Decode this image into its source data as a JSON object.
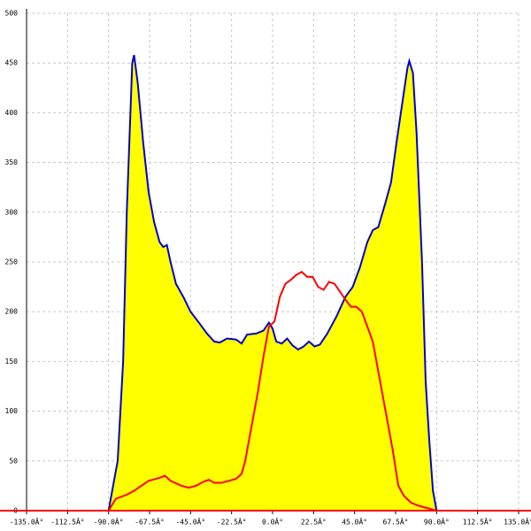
{
  "chart_data": {
    "type": "area-line",
    "xlim": [
      -135,
      135
    ],
    "ylim": [
      0,
      500
    ],
    "xticks": [
      {
        "value": -135,
        "label": "-135.0Â°"
      },
      {
        "value": -112.5,
        "label": "-112.5Â°"
      },
      {
        "value": -90,
        "label": "-90.0Â°"
      },
      {
        "value": -67.5,
        "label": "-67.5Â°"
      },
      {
        "value": -45,
        "label": "-45.0Â°"
      },
      {
        "value": -22.5,
        "label": "-22.5Â°"
      },
      {
        "value": 0,
        "label": "0.0Â°"
      },
      {
        "value": 22.5,
        "label": "22.5Â°"
      },
      {
        "value": 45,
        "label": "45.0Â°"
      },
      {
        "value": 67.5,
        "label": "67.5Â°"
      },
      {
        "value": 90,
        "label": "90.0Â°"
      },
      {
        "value": 112.5,
        "label": "112.5Â°"
      },
      {
        "value": 135,
        "label": "135.0Â°"
      }
    ],
    "yticks": [
      0,
      50,
      100,
      150,
      200,
      250,
      300,
      350,
      400,
      450,
      500
    ],
    "grid": true,
    "series": [
      {
        "color": "#0000cc",
        "fill": "#ffff00",
        "x": [
          -90,
          -85,
          -82,
          -80,
          -77,
          -76,
          -74,
          -71,
          -68,
          -65,
          -62,
          -60,
          -58,
          -56,
          -53,
          -49,
          -45,
          -40,
          -36,
          -32,
          -29,
          -25,
          -20,
          -17,
          -14,
          -9,
          -5,
          -2,
          0,
          2,
          5,
          8,
          11,
          14,
          17,
          20,
          23,
          26,
          30,
          35,
          40,
          44,
          48,
          52,
          55,
          58,
          62,
          65,
          68,
          72,
          74,
          75,
          77,
          79,
          82,
          84,
          86,
          88,
          90
        ],
        "values": [
          0,
          50,
          150,
          300,
          450,
          458,
          430,
          370,
          320,
          290,
          270,
          265,
          267,
          250,
          228,
          215,
          200,
          188,
          178,
          170,
          169,
          173,
          172,
          168,
          177,
          178,
          181,
          189,
          183,
          170,
          168,
          173,
          166,
          162,
          165,
          170,
          165,
          167,
          178,
          195,
          215,
          225,
          245,
          270,
          282,
          285,
          310,
          330,
          370,
          420,
          445,
          452,
          440,
          380,
          250,
          130,
          70,
          20,
          0
        ]
      },
      {
        "color": "#ff0000",
        "x": [
          -90,
          -86,
          -80,
          -76,
          -72,
          -68,
          -62,
          -59,
          -56,
          -50,
          -46,
          -42,
          -38,
          -35,
          -32,
          -28,
          -24,
          -20,
          -17,
          -15,
          -12,
          -8,
          -5,
          -2,
          1,
          4,
          7,
          10,
          13,
          16,
          19,
          22,
          25,
          28,
          31,
          34,
          37,
          40,
          43,
          46,
          49,
          52,
          55,
          58,
          62,
          66,
          69,
          72,
          76,
          80,
          84,
          88,
          90
        ],
        "values": [
          0,
          12,
          16,
          20,
          25,
          30,
          33,
          35,
          30,
          25,
          23,
          25,
          29,
          31,
          28,
          28,
          30,
          32,
          37,
          50,
          80,
          120,
          155,
          185,
          190,
          215,
          228,
          232,
          237,
          240,
          235,
          235,
          225,
          222,
          230,
          228,
          220,
          212,
          205,
          205,
          200,
          185,
          170,
          140,
          100,
          60,
          25,
          15,
          8,
          5,
          3,
          1,
          0
        ]
      }
    ]
  }
}
